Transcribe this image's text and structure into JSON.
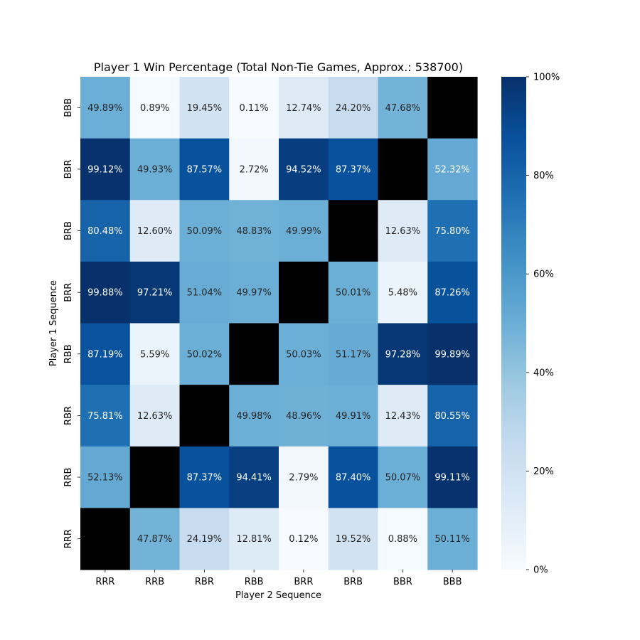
{
  "chart_data": {
    "type": "heatmap",
    "title": "Player 1 Win Percentage (Total Non-Tie Games, Approx.: 538700)",
    "xlabel": "Player 2 Sequence",
    "ylabel": "Player 1 Sequence",
    "x_categories": [
      "RRR",
      "RRB",
      "RBR",
      "RBB",
      "BRR",
      "BRB",
      "BBR",
      "BBB"
    ],
    "y_categories": [
      "BBB",
      "BBR",
      "BRB",
      "BRR",
      "RBB",
      "RBR",
      "RRB",
      "RRR"
    ],
    "values": [
      [
        49.89,
        0.89,
        19.45,
        0.11,
        12.74,
        24.2,
        47.68,
        null
      ],
      [
        99.12,
        49.93,
        87.57,
        2.72,
        94.52,
        87.37,
        null,
        52.32
      ],
      [
        80.48,
        12.6,
        50.09,
        48.83,
        49.99,
        null,
        12.63,
        75.8
      ],
      [
        99.88,
        97.21,
        51.04,
        49.97,
        null,
        50.01,
        5.48,
        87.26
      ],
      [
        87.19,
        5.59,
        50.02,
        null,
        50.03,
        51.17,
        97.28,
        99.89
      ],
      [
        75.81,
        12.63,
        null,
        49.98,
        48.96,
        49.91,
        12.43,
        80.55
      ],
      [
        52.13,
        null,
        87.37,
        94.41,
        2.79,
        87.4,
        50.07,
        99.11
      ],
      [
        null,
        47.87,
        24.19,
        12.81,
        0.12,
        19.52,
        0.88,
        50.11
      ]
    ],
    "value_format": "percent, 2 decimals",
    "missing_color": "#000000",
    "colormap": "Blues",
    "colorbar": {
      "range": [
        0,
        100
      ],
      "ticks": [
        0,
        20,
        40,
        60,
        80,
        100
      ],
      "tick_labels": [
        "0%",
        "20%",
        "40%",
        "60%",
        "80%",
        "100%"
      ]
    }
  }
}
